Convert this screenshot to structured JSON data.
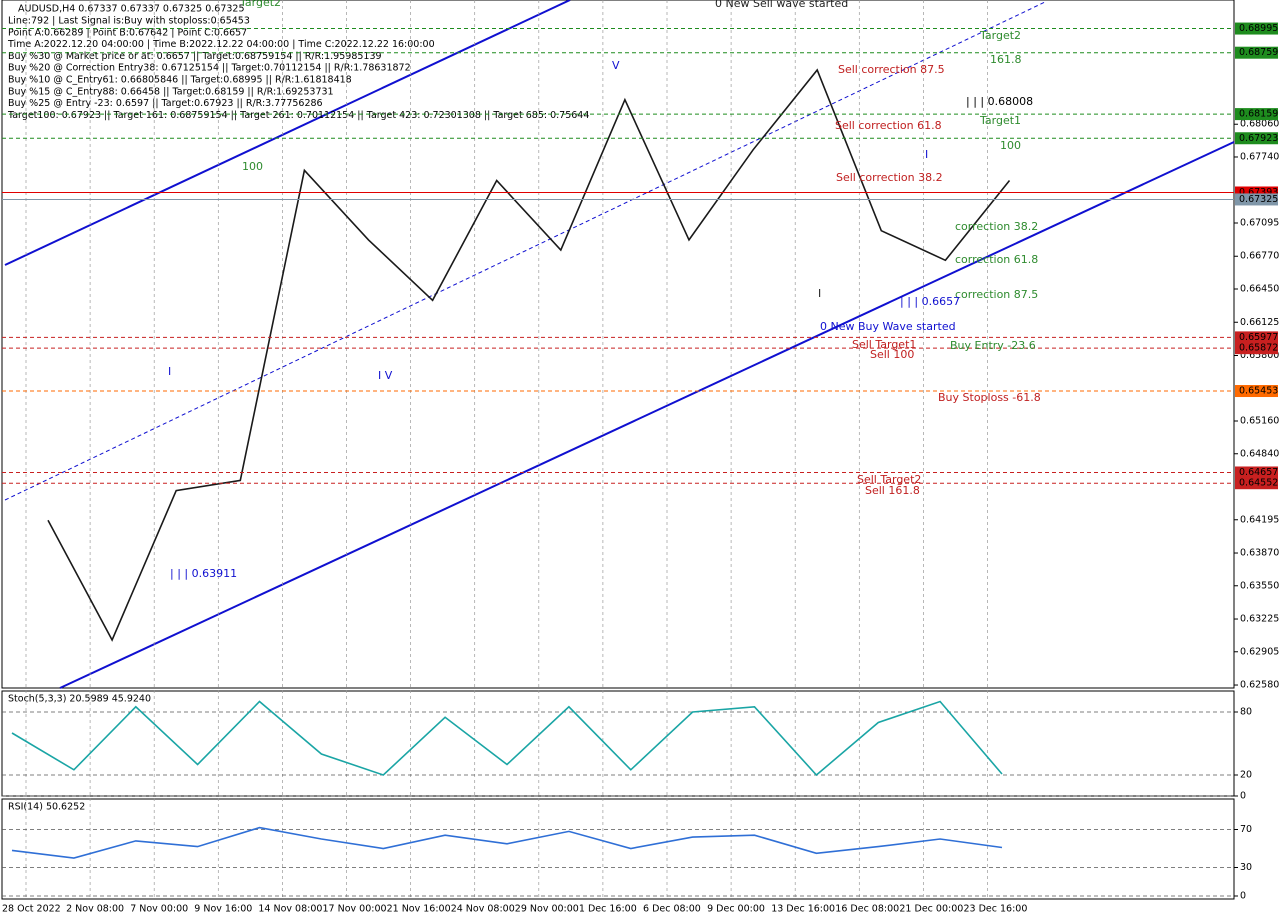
{
  "chart_data": [
    {
      "type": "line",
      "title": "AUDUSD,H4  0.67337 0.67337 0.67325 0.67325",
      "info_lines": [
        "Line:792 | Last Signal is:Buy with stoploss:0.65453",
        "Point A:0.66289 | Point B:0.67642 | Point C:0.6657",
        "Time A:2022.12.20 04:00:00 | Time B:2022.12.22 04:00:00 | Time C:2022.12.22 16:00:00",
        "Buy %30 @ Market price or at: 0.6657 || Target:0.68759154 || R/R:1.95985139",
        "Buy %20 @ Correction Entry38: 0.67125154 || Target:0.70112154 || R/R:1.78631872",
        "Buy %10 @ C_Entry61: 0.66805846 || Target:0.68995 || R/R:1.61818418",
        "Buy %15 @ C_Entry88: 0.66458 || Target:0.68159 || R/R:1.69253731",
        "Buy %25 @ Entry -23: 0.6597 || Target:0.67923 || R/R:3.77756286",
        "Target100: 0.67923 || Target 161: 0.68759154 || Target 261: 0.70112154 || Target 423: 0.72301308 || Target 685: 0.75644"
      ],
      "categories": [
        "28 Oct 2022",
        "2 Nov 08:00",
        "7 Nov 00:00",
        "9 Nov 16:00",
        "14 Nov 08:00",
        "17 Nov 00:00",
        "21 Nov 16:00",
        "24 Nov 08:00",
        "29 Nov 00:00",
        "1 Dec 16:00",
        "6 Dec 08:00",
        "9 Dec 00:00",
        "13 Dec 16:00",
        "16 Dec 08:00",
        "21 Dec 00:00",
        "23 Dec 16:00"
      ],
      "values": [
        0.6419,
        0.6302,
        0.6448,
        0.6458,
        0.6761,
        0.6693,
        0.6634,
        0.6751,
        0.6683,
        0.683,
        0.6693,
        0.6781,
        0.6859,
        0.6702,
        0.6673,
        0.6751
      ],
      "color": "#1a1a1a",
      "ylim": [
        0.62551,
        0.69274
      ],
      "yticks": [
        {
          "value": 0.6258,
          "label": "0.62580"
        },
        {
          "value": 0.62905,
          "label": "0.62905"
        },
        {
          "value": 0.63225,
          "label": "0.63225"
        },
        {
          "value": 0.6355,
          "label": "0.63550"
        },
        {
          "value": 0.6387,
          "label": "0.63870"
        },
        {
          "value": 0.64195,
          "label": "0.64195"
        },
        {
          "value": 0.6484,
          "label": "0.64840"
        },
        {
          "value": 0.6516,
          "label": "0.65160"
        },
        {
          "value": 0.658,
          "label": "0.65800"
        },
        {
          "value": 0.66125,
          "label": "0.66125"
        },
        {
          "value": 0.6645,
          "label": "0.66450"
        },
        {
          "value": 0.6677,
          "label": "0.66770"
        },
        {
          "value": 0.67095,
          "label": "0.67095"
        },
        {
          "value": 0.6774,
          "label": "0.67740"
        },
        {
          "value": 0.6806,
          "label": "0.68060"
        }
      ],
      "price_levels": [
        0.68995,
        0.68759,
        0.68159,
        0.67923,
        0.67393,
        0.67325,
        0.65977,
        0.65872,
        0.65453,
        0.64657,
        0.64552
      ],
      "level_colors": [
        "#1e8c1e",
        "#1e8c1e",
        "#1e8c1e",
        "#1e8c1e",
        "#e00000",
        "#7f96a8",
        "#c82020",
        "#c82020",
        "#ff6a00",
        "#c82020",
        "#c82020"
      ],
      "annotations": [
        "Target2",
        "0 New Sell wave started",
        "Target2",
        "161.8",
        "Sell correction 87.5",
        "| | | 0.68008",
        "Target1",
        "Sell correction 61.8",
        "100",
        "Sell correction 38.2",
        "100",
        "V",
        "I",
        "correction 38.2",
        "correction 61.8",
        "correction 87.5",
        "| | | 0.6657",
        "0 New Buy Wave started",
        "Sell Target1",
        "Sell 100",
        "Buy Entry -23.6",
        "Buy Stoploss -61.8",
        "Sell Target2",
        "Sell 161.8",
        "I V",
        "I",
        "| | | 0.63911",
        "I"
      ]
    },
    {
      "type": "line",
      "title": "Stoch(5,3,3) 20.5989 45.9240",
      "values": [
        60,
        25,
        85,
        30,
        90,
        40,
        20,
        75,
        30,
        85,
        25,
        80,
        85,
        20,
        70,
        90,
        21
      ],
      "color": "#1aa5a5",
      "ylim": [
        0,
        100
      ],
      "yticks": [
        0,
        20,
        80
      ]
    },
    {
      "type": "line",
      "title": "RSI(14) 50.6252",
      "values": [
        48,
        40,
        58,
        52,
        72,
        60,
        50,
        64,
        55,
        68,
        50,
        62,
        64,
        45,
        52,
        60,
        51
      ],
      "color": "#2f6fd6",
      "ylim": [
        0,
        100
      ],
      "yticks": [
        0,
        30,
        70
      ]
    }
  ]
}
